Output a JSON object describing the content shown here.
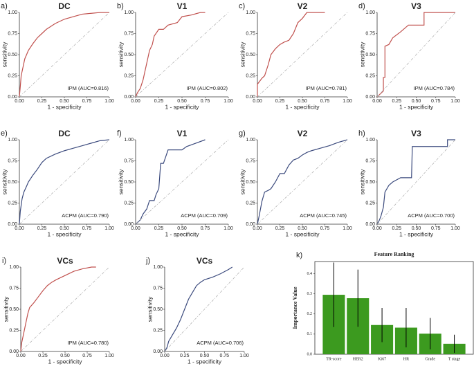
{
  "chart_data": [
    {
      "type": "line",
      "panel": "a)",
      "title": "DC",
      "xlabel": "1 - specificity",
      "ylabel": "sensitivity",
      "annotation": "IPM (AUC=0.816)",
      "xlim": [
        0,
        1
      ],
      "ylim": [
        0,
        1
      ],
      "xticks": [
        {
          "value": 0,
          "label": "0.00"
        },
        0.25,
        {
          "value": 0.5,
          "label": "0.50"
        },
        0.75,
        {
          "value": 1,
          "label": "1.00"
        }
      ],
      "yticks": [
        {
          "value": 0,
          "label": "0.00"
        },
        0.25,
        {
          "value": 0.5,
          "label": "0.50"
        },
        0.75,
        {
          "value": 1,
          "label": "1.00"
        }
      ],
      "series": [
        {
          "color": "#c0504d",
          "x": [
            0,
            0.01,
            0.02,
            0.04,
            0.06,
            0.08,
            0.1,
            0.15,
            0.2,
            0.25,
            0.3,
            0.4,
            0.5,
            0.6,
            0.7,
            0.8,
            0.9,
            1
          ],
          "values": [
            0,
            0.12,
            0.25,
            0.35,
            0.45,
            0.5,
            0.55,
            0.63,
            0.7,
            0.75,
            0.8,
            0.87,
            0.92,
            0.95,
            0.98,
            0.99,
            1,
            1
          ]
        },
        {
          "color": "#aaaaaa",
          "dash": true,
          "x": [
            0,
            1
          ],
          "values": [
            0,
            1
          ]
        }
      ]
    },
    {
      "type": "line",
      "panel": "b)",
      "title": "V1",
      "xlabel": "1 - specificity",
      "ylabel": "sensitivity",
      "annotation": "IPM (AUC=0.802)",
      "xlim": [
        0,
        1
      ],
      "ylim": [
        0,
        1
      ],
      "xticks": [
        {
          "value": 0,
          "label": "0.00"
        },
        0.25,
        {
          "value": 0.5,
          "label": "0.50"
        },
        0.75,
        {
          "value": 1,
          "label": "1.00"
        }
      ],
      "yticks": [
        {
          "value": 0,
          "label": "0.00"
        },
        0.25,
        {
          "value": 0.5,
          "label": "0.50"
        },
        0.75,
        {
          "value": 1,
          "label": "1.00"
        }
      ],
      "series": [
        {
          "color": "#c0504d",
          "x": [
            0,
            0.02,
            0.05,
            0.08,
            0.1,
            0.12,
            0.15,
            0.18,
            0.2,
            0.25,
            0.3,
            0.35,
            0.45,
            0.5,
            0.6,
            0.7,
            0.75
          ],
          "values": [
            0,
            0.05,
            0.1,
            0.2,
            0.3,
            0.4,
            0.55,
            0.62,
            0.72,
            0.8,
            0.8,
            0.85,
            0.88,
            0.95,
            0.97,
            1,
            1
          ]
        },
        {
          "color": "#aaaaaa",
          "dash": true,
          "x": [
            0,
            1
          ],
          "values": [
            0,
            1
          ]
        }
      ]
    },
    {
      "type": "line",
      "panel": "c)",
      "title": "V2",
      "xlabel": "1 - specificity",
      "ylabel": "sensitivity",
      "annotation": "IPM (AUC=0.781)",
      "xlim": [
        0,
        1
      ],
      "ylim": [
        0,
        1
      ],
      "xticks": [
        {
          "value": 0,
          "label": "0.00"
        },
        0.25,
        {
          "value": 0.5,
          "label": "0.50"
        },
        0.75,
        {
          "value": 1,
          "label": "1.00"
        }
      ],
      "yticks": [
        {
          "value": 0,
          "label": "0.00"
        },
        0.25,
        {
          "value": 0.5,
          "label": "0.50"
        },
        0.75,
        {
          "value": 1,
          "label": "1.00"
        }
      ],
      "series": [
        {
          "color": "#c0504d",
          "x": [
            0,
            0,
            0.05,
            0.08,
            0.12,
            0.15,
            0.2,
            0.25,
            0.3,
            0.35,
            0.4,
            0.45,
            0.5,
            0.55,
            0.6,
            0.75
          ],
          "values": [
            0,
            0.15,
            0.22,
            0.25,
            0.38,
            0.5,
            0.57,
            0.62,
            0.65,
            0.67,
            0.75,
            0.88,
            0.93,
            1,
            1,
            1
          ]
        },
        {
          "color": "#aaaaaa",
          "dash": true,
          "x": [
            0,
            1
          ],
          "values": [
            0,
            1
          ]
        }
      ]
    },
    {
      "type": "line",
      "panel": "d)",
      "title": "V3",
      "xlabel": "1 - specificity",
      "ylabel": "sensitivity",
      "annotation": "IPM (AUC=0.784)",
      "xlim": [
        0,
        1
      ],
      "ylim": [
        0,
        1
      ],
      "xticks": [
        {
          "value": 0,
          "label": "0.00"
        },
        0.25,
        {
          "value": 0.5,
          "label": "0.50"
        },
        0.75,
        {
          "value": 1,
          "label": "1.00"
        }
      ],
      "yticks": [
        {
          "value": 0,
          "label": "0.00"
        },
        0.25,
        {
          "value": 0.5,
          "label": "0.50"
        },
        0.75,
        {
          "value": 1,
          "label": "1.00"
        }
      ],
      "series": [
        {
          "color": "#c0504d",
          "x": [
            0,
            0.08,
            0.08,
            0.1,
            0.1,
            0.15,
            0.2,
            0.3,
            0.4,
            0.5,
            0.6,
            0.6,
            1
          ],
          "values": [
            0,
            0.07,
            0.23,
            0.23,
            0.6,
            0.62,
            0.7,
            0.77,
            0.85,
            0.85,
            0.85,
            1,
            1
          ]
        },
        {
          "color": "#aaaaaa",
          "dash": true,
          "x": [
            0,
            1
          ],
          "values": [
            0,
            1
          ]
        }
      ]
    },
    {
      "type": "line",
      "panel": "e)",
      "title": "DC",
      "xlabel": "1 - specificity",
      "ylabel": "sensitivity",
      "annotation": "ACPM (AUC=0.790)",
      "xlim": [
        0,
        1
      ],
      "ylim": [
        0,
        1
      ],
      "xticks": [
        {
          "value": 0,
          "label": "0.00"
        },
        0.25,
        {
          "value": 0.5,
          "label": "0.50"
        },
        0.75,
        {
          "value": 1,
          "label": "1.00"
        }
      ],
      "yticks": [
        {
          "value": 0,
          "label": "0.00"
        },
        0.25,
        {
          "value": 0.5,
          "label": "0.50"
        },
        0.75,
        {
          "value": 1,
          "label": "1.00"
        }
      ],
      "series": [
        {
          "color": "#3b4a7d",
          "x": [
            0,
            0.01,
            0.03,
            0.05,
            0.08,
            0.1,
            0.15,
            0.2,
            0.25,
            0.3,
            0.4,
            0.5,
            0.6,
            0.7,
            0.8,
            0.9,
            1
          ],
          "values": [
            0,
            0.15,
            0.3,
            0.38,
            0.45,
            0.5,
            0.58,
            0.65,
            0.73,
            0.78,
            0.83,
            0.87,
            0.9,
            0.93,
            0.96,
            0.99,
            1
          ]
        },
        {
          "color": "#aaaaaa",
          "dash": true,
          "x": [
            0,
            1
          ],
          "values": [
            0,
            1
          ]
        }
      ]
    },
    {
      "type": "line",
      "panel": "f)",
      "title": "V1",
      "xlabel": "1 - specificity",
      "ylabel": "sensitivity",
      "annotation": "ACPM (AUC=0.709)",
      "xlim": [
        0,
        1
      ],
      "ylim": [
        0,
        1
      ],
      "xticks": [
        {
          "value": 0,
          "label": "0.00"
        },
        0.25,
        {
          "value": 0.5,
          "label": "0.50"
        },
        0.75,
        {
          "value": 1,
          "label": "1.00"
        }
      ],
      "yticks": [
        {
          "value": 0,
          "label": "0.00"
        },
        0.25,
        {
          "value": 0.5,
          "label": "0.50"
        },
        0.75,
        {
          "value": 1,
          "label": "1.00"
        }
      ],
      "series": [
        {
          "color": "#3b4a7d",
          "x": [
            0,
            0.05,
            0.08,
            0.12,
            0.15,
            0.2,
            0.22,
            0.25,
            0.27,
            0.3,
            0.35,
            0.45,
            0.5,
            0.55,
            0.65,
            0.75
          ],
          "values": [
            0,
            0.05,
            0.12,
            0.18,
            0.28,
            0.28,
            0.35,
            0.42,
            0.72,
            0.72,
            0.88,
            0.88,
            0.88,
            0.92,
            0.96,
            1
          ]
        },
        {
          "color": "#aaaaaa",
          "dash": true,
          "x": [
            0,
            1
          ],
          "values": [
            0,
            1
          ]
        }
      ]
    },
    {
      "type": "line",
      "panel": "g)",
      "title": "V2",
      "xlabel": "1 - specificity",
      "ylabel": "sensitivity",
      "annotation": "ACPM (AUC=0.745)",
      "xlim": [
        0,
        1
      ],
      "ylim": [
        0,
        1
      ],
      "xticks": [
        {
          "value": 0,
          "label": "0.00"
        },
        0.25,
        {
          "value": 0.5,
          "label": "0.50"
        },
        0.75,
        {
          "value": 1,
          "label": "1.00"
        }
      ],
      "yticks": [
        {
          "value": 0,
          "label": "0.00"
        },
        0.25,
        {
          "value": 0.5,
          "label": "0.50"
        },
        0.75,
        {
          "value": 1,
          "label": "1.00"
        }
      ],
      "series": [
        {
          "color": "#3b4a7d",
          "x": [
            0,
            0.02,
            0.05,
            0.08,
            0.12,
            0.15,
            0.2,
            0.25,
            0.3,
            0.35,
            0.4,
            0.45,
            0.5,
            0.55,
            0.6,
            0.7,
            0.8,
            0.9,
            1
          ],
          "values": [
            0,
            0.1,
            0.27,
            0.38,
            0.4,
            0.42,
            0.5,
            0.6,
            0.6,
            0.7,
            0.76,
            0.78,
            0.82,
            0.85,
            0.87,
            0.9,
            0.93,
            0.97,
            1
          ]
        },
        {
          "color": "#aaaaaa",
          "dash": true,
          "x": [
            0,
            1
          ],
          "values": [
            0,
            1
          ]
        }
      ]
    },
    {
      "type": "line",
      "panel": "h)",
      "title": "V3",
      "xlabel": "1 - specificity",
      "ylabel": "sensitivity",
      "annotation": "ACPM (AUC=0.700)",
      "xlim": [
        0,
        1
      ],
      "ylim": [
        0,
        1
      ],
      "xticks": [
        {
          "value": 0,
          "label": "0.00"
        },
        0.25,
        {
          "value": 0.5,
          "label": "0.50"
        },
        0.75,
        {
          "value": 1,
          "label": "1.00"
        }
      ],
      "yticks": [
        {
          "value": 0,
          "label": "0.00"
        },
        0.25,
        {
          "value": 0.5,
          "label": "0.50"
        },
        0.75,
        {
          "value": 1,
          "label": "1.00"
        }
      ],
      "series": [
        {
          "color": "#3b4a7d",
          "x": [
            0,
            0.03,
            0.05,
            0.08,
            0.1,
            0.15,
            0.2,
            0.3,
            0.44,
            0.45,
            0.5,
            0.9,
            0.9,
            1
          ],
          "values": [
            0,
            0.05,
            0.1,
            0.2,
            0.38,
            0.46,
            0.5,
            0.55,
            0.55,
            0.92,
            0.92,
            0.92,
            1,
            1
          ]
        },
        {
          "color": "#aaaaaa",
          "dash": true,
          "x": [
            0,
            1
          ],
          "values": [
            0,
            1
          ]
        }
      ]
    },
    {
      "type": "line",
      "panel": "i)",
      "title": "VCs",
      "xlabel": "1 - specificity",
      "ylabel": "sensitivity",
      "annotation": "IPM (AUC=0.780)",
      "xlim": [
        0,
        1
      ],
      "ylim": [
        0,
        1
      ],
      "xticks": [
        {
          "value": 0,
          "label": "0.00"
        },
        0.25,
        {
          "value": 0.5,
          "label": "0.50"
        },
        0.75,
        {
          "value": 1,
          "label": "1.00"
        }
      ],
      "yticks": [
        {
          "value": 0,
          "label": "0.00"
        },
        0.25,
        {
          "value": 0.5,
          "label": "0.50"
        },
        0.75,
        {
          "value": 1,
          "label": "1.00"
        }
      ],
      "series": [
        {
          "color": "#c0504d",
          "x": [
            0,
            0.01,
            0.03,
            0.05,
            0.08,
            0.1,
            0.15,
            0.2,
            0.25,
            0.3,
            0.35,
            0.4,
            0.5,
            0.6,
            0.7,
            0.8,
            0.85
          ],
          "values": [
            0,
            0.1,
            0.2,
            0.3,
            0.45,
            0.52,
            0.58,
            0.65,
            0.72,
            0.78,
            0.82,
            0.85,
            0.9,
            0.95,
            0.98,
            1,
            1
          ]
        },
        {
          "color": "#aaaaaa",
          "dash": true,
          "x": [
            0,
            1
          ],
          "values": [
            0,
            1
          ]
        }
      ]
    },
    {
      "type": "line",
      "panel": "j)",
      "title": "VCs",
      "xlabel": "1 - specificity",
      "ylabel": "sensitivity",
      "annotation": "ACPM (AUC=0.706)",
      "xlim": [
        0,
        1
      ],
      "ylim": [
        0,
        1
      ],
      "xticks": [
        {
          "value": 0,
          "label": "0.00"
        },
        0.25,
        {
          "value": 0.5,
          "label": "0.50"
        },
        0.75,
        {
          "value": 1,
          "label": "1.00"
        }
      ],
      "yticks": [
        {
          "value": 0,
          "label": "0.00"
        },
        0.25,
        {
          "value": 0.5,
          "label": "0.50"
        },
        0.75,
        {
          "value": 1,
          "label": "1.00"
        }
      ],
      "series": [
        {
          "color": "#3b4a7d",
          "x": [
            0,
            0.03,
            0.05,
            0.1,
            0.15,
            0.2,
            0.25,
            0.3,
            0.35,
            0.4,
            0.45,
            0.5,
            0.6,
            0.7,
            0.8,
            0.85
          ],
          "values": [
            0,
            0.05,
            0.12,
            0.2,
            0.28,
            0.38,
            0.5,
            0.62,
            0.7,
            0.78,
            0.82,
            0.85,
            0.88,
            0.92,
            0.97,
            1
          ]
        },
        {
          "color": "#aaaaaa",
          "dash": true,
          "x": [
            0,
            1
          ],
          "values": [
            0,
            1
          ]
        }
      ]
    },
    {
      "type": "bar",
      "panel": "k)",
      "title": "Feature Ranking",
      "ylabel": "Importance Value",
      "categories": [
        "TR-score",
        "HER2",
        "Ki67",
        "HR",
        "Grade",
        "T stage"
      ],
      "values": [
        0.295,
        0.278,
        0.145,
        0.132,
        0.102,
        0.052
      ],
      "errors": [
        0.16,
        0.142,
        0.085,
        0.098,
        0.078,
        0.045
      ],
      "color": "#3c9a1f",
      "ylim": [
        0,
        0.46
      ],
      "yticks": [
        {
          "value": 0,
          "label": "0.0"
        },
        0.1,
        0.2,
        0.3,
        0.4
      ]
    }
  ]
}
